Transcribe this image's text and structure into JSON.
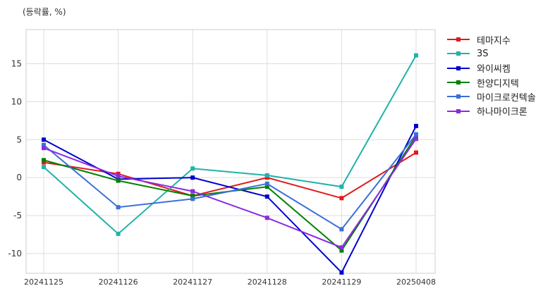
{
  "chart_data": {
    "type": "line",
    "unit_label": "(등락률, %)",
    "categories": [
      "20241125",
      "20241126",
      "20241127",
      "20241128",
      "20241129",
      "20250408"
    ],
    "y_ticks": [
      15,
      10,
      5,
      0,
      -5,
      -10
    ],
    "y_tick_labels": [
      "15",
      "10",
      "5",
      "0",
      "-5",
      "-10"
    ],
    "ylim": [
      -12.6,
      19.5
    ],
    "grid": true,
    "legend_position": "right",
    "series": [
      {
        "name": "테마지수",
        "color": "#e31a1c",
        "values": [
          2.0,
          0.5,
          -2.4,
          0.0,
          -2.7,
          3.3
        ]
      },
      {
        "name": "3S",
        "color": "#20b2aa",
        "values": [
          1.4,
          -7.4,
          1.2,
          0.3,
          -1.2,
          16.1
        ]
      },
      {
        "name": "와이씨켐",
        "color": "#0000cd",
        "values": [
          5.0,
          -0.2,
          0.0,
          -2.5,
          -12.5,
          6.8
        ]
      },
      {
        "name": "한양디지텍",
        "color": "#008000",
        "values": [
          2.3,
          -0.4,
          -2.4,
          -1.2,
          -9.6,
          5.5
        ]
      },
      {
        "name": "마이크로컨텍솔",
        "color": "#3a6fd8",
        "values": [
          4.3,
          -3.9,
          -2.8,
          -0.8,
          -6.8,
          5.7
        ]
      },
      {
        "name": "하나마이크론",
        "color": "#8a2be2",
        "values": [
          3.9,
          0.2,
          -1.8,
          -5.3,
          -9.2,
          5.1
        ]
      }
    ]
  }
}
